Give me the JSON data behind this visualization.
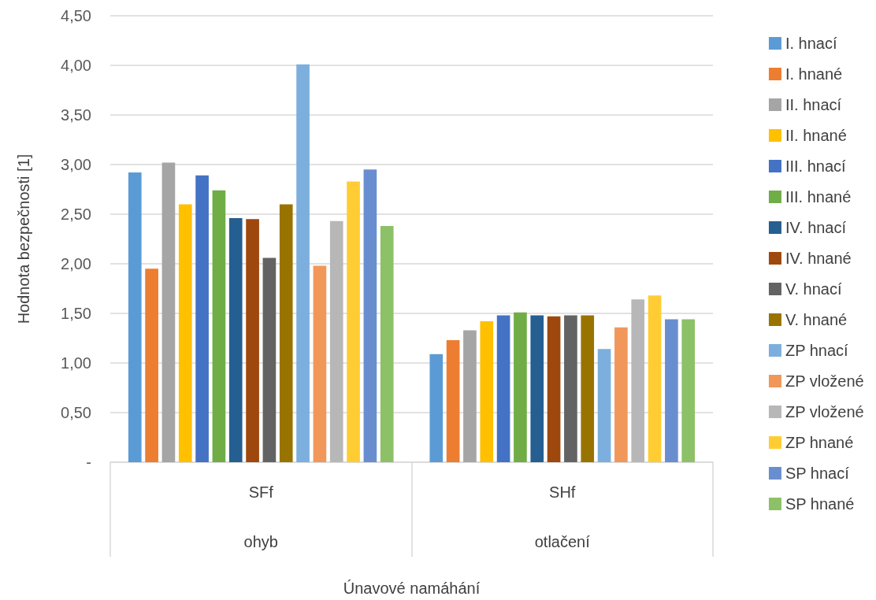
{
  "chart_data": {
    "type": "bar",
    "ylabel": "Hodnota bezpečnosti [1]",
    "xlabel": "Únavové namáhání",
    "categories": [
      "SFf",
      "SHf"
    ],
    "annotations": [
      "ohyb",
      "otlačení"
    ],
    "ylim": [
      0,
      4.5
    ],
    "yticks": [
      {
        "value": 0,
        "label": "-"
      },
      {
        "value": 0.5,
        "label": "0,50"
      },
      {
        "value": 1,
        "label": "1,00"
      },
      {
        "value": 1.5,
        "label": "1,50"
      },
      {
        "value": 2,
        "label": "2,00"
      },
      {
        "value": 2.5,
        "label": "2,50"
      },
      {
        "value": 3,
        "label": "3,00"
      },
      {
        "value": 3.5,
        "label": "3,50"
      },
      {
        "value": 4,
        "label": "4,00"
      },
      {
        "value": 4.5,
        "label": "4,50"
      }
    ],
    "grid": "y",
    "legend": "right",
    "series": [
      {
        "name": "I. hnací",
        "color": "#5b9bd5",
        "values": [
          2.92,
          1.09
        ]
      },
      {
        "name": "I. hnané",
        "color": "#ed7d31",
        "values": [
          1.95,
          1.23
        ]
      },
      {
        "name": "II. hnací",
        "color": "#a5a5a5",
        "values": [
          3.02,
          1.33
        ]
      },
      {
        "name": "II. hnané",
        "color": "#ffc000",
        "values": [
          2.6,
          1.42
        ]
      },
      {
        "name": "III. hnací",
        "color": "#4472c4",
        "values": [
          2.89,
          1.48
        ]
      },
      {
        "name": "III. hnané",
        "color": "#70ad47",
        "values": [
          2.74,
          1.51
        ]
      },
      {
        "name": "IV. hnací",
        "color": "#255e91",
        "values": [
          2.46,
          1.48
        ]
      },
      {
        "name": "IV. hnané",
        "color": "#9e480e",
        "values": [
          2.45,
          1.47
        ]
      },
      {
        "name": "V. hnací",
        "color": "#636363",
        "values": [
          2.06,
          1.48
        ]
      },
      {
        "name": "V. hnané",
        "color": "#997300",
        "values": [
          2.6,
          1.48
        ]
      },
      {
        "name": "ZP hnací",
        "color": "#7cafdd",
        "values": [
          4.01,
          1.14
        ]
      },
      {
        "name": "ZP vložené",
        "color": "#f1975a",
        "values": [
          1.98,
          1.36
        ]
      },
      {
        "name": "ZP vložené",
        "color": "#b7b7b7",
        "values": [
          2.43,
          1.64
        ]
      },
      {
        "name": "ZP hnané",
        "color": "#ffcd33",
        "values": [
          2.83,
          1.68
        ]
      },
      {
        "name": "SP hnací",
        "color": "#698ed0",
        "values": [
          2.95,
          1.44
        ]
      },
      {
        "name": "SP hnané",
        "color": "#8cc168",
        "values": [
          2.38,
          1.44
        ]
      }
    ]
  }
}
